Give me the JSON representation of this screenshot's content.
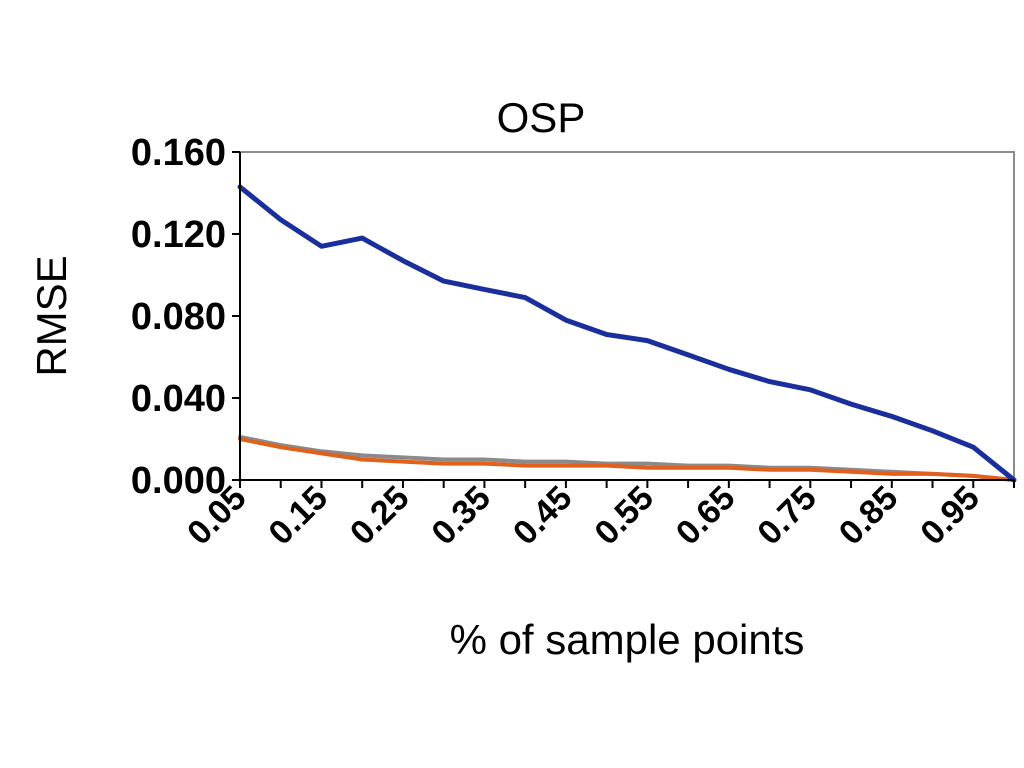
{
  "chart_data": {
    "type": "line",
    "title": "OSP",
    "xlabel": "% of sample points",
    "ylabel": "RMSE",
    "x": [
      0.05,
      0.1,
      0.15,
      0.2,
      0.25,
      0.3,
      0.35,
      0.4,
      0.45,
      0.5,
      0.55,
      0.6,
      0.65,
      0.7,
      0.75,
      0.8,
      0.85,
      0.9,
      0.95,
      1.0
    ],
    "xticks": [
      "0.05",
      "0.15",
      "0.25",
      "0.35",
      "0.45",
      "0.55",
      "0.65",
      "0.75",
      "0.85",
      "0.95"
    ],
    "xlim": [
      0.05,
      1.0
    ],
    "yticks": [
      "0.000",
      "0.040",
      "0.080",
      "0.120",
      "0.160"
    ],
    "ylim": [
      0,
      0.16
    ],
    "grid": false,
    "legend": "none",
    "series": [
      {
        "color": "#1a2f9c",
        "values": [
          0.143,
          0.127,
          0.114,
          0.118,
          0.107,
          0.097,
          0.093,
          0.089,
          0.078,
          0.071,
          0.068,
          0.061,
          0.054,
          0.048,
          0.044,
          0.037,
          0.031,
          0.024,
          0.016,
          0.0
        ]
      },
      {
        "color": "#e0601c",
        "values": [
          0.02,
          0.016,
          0.013,
          0.01,
          0.009,
          0.008,
          0.008,
          0.007,
          0.007,
          0.007,
          0.006,
          0.006,
          0.006,
          0.005,
          0.005,
          0.004,
          0.003,
          0.003,
          0.002,
          0.0
        ]
      },
      {
        "color": "#8a8a8a",
        "values": [
          0.021,
          0.017,
          0.014,
          0.012,
          0.011,
          0.01,
          0.01,
          0.009,
          0.009,
          0.008,
          0.008,
          0.007,
          0.007,
          0.006,
          0.006,
          0.005,
          0.004,
          0.003,
          0.002,
          0.0
        ]
      }
    ]
  }
}
